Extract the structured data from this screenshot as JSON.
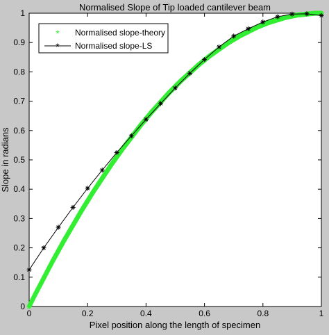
{
  "chart_data": {
    "type": "line",
    "title": "Normalised Slope of Tip loaded cantilever beam",
    "xlabel": "Pixel position along the length of specimen",
    "ylabel": "Slope in radians",
    "xlim": [
      0,
      1
    ],
    "ylim": [
      0,
      1
    ],
    "xticks": [
      0,
      0.2,
      0.4,
      0.6,
      0.8,
      1
    ],
    "xtick_labels": [
      "0",
      "0.2",
      "0.4",
      "0.6",
      "0.8",
      "1"
    ],
    "yticks": [
      0,
      0.1,
      0.2,
      0.3,
      0.4,
      0.5,
      0.6,
      0.7,
      0.8,
      0.9,
      1
    ],
    "ytick_labels": [
      "0",
      "0.1",
      "0.2",
      "0.3",
      "0.4",
      "0.5",
      "0.6",
      "0.7",
      "0.8",
      "0.9",
      "1"
    ],
    "grid": false,
    "legend_position": "top-left",
    "series": [
      {
        "name": "Normalised slope-theory",
        "style": "markers",
        "marker": "asterisk",
        "color": "#33ee33",
        "x": [
          0,
          0.02,
          0.04,
          0.06,
          0.08,
          0.1,
          0.12,
          0.14,
          0.16,
          0.18,
          0.2,
          0.22,
          0.24,
          0.26,
          0.28,
          0.3,
          0.32,
          0.34,
          0.36,
          0.38,
          0.4,
          0.42,
          0.44,
          0.46,
          0.48,
          0.5,
          0.52,
          0.54,
          0.56,
          0.58,
          0.6,
          0.62,
          0.64,
          0.66,
          0.68,
          0.7,
          0.72,
          0.74,
          0.76,
          0.78,
          0.8,
          0.82,
          0.84,
          0.86,
          0.88,
          0.9,
          0.92,
          0.94,
          0.96,
          0.98,
          1
        ],
        "y": [
          0,
          0.04,
          0.078,
          0.116,
          0.154,
          0.19,
          0.226,
          0.26,
          0.294,
          0.328,
          0.36,
          0.392,
          0.422,
          0.452,
          0.482,
          0.51,
          0.538,
          0.564,
          0.59,
          0.616,
          0.64,
          0.664,
          0.686,
          0.708,
          0.73,
          0.75,
          0.77,
          0.788,
          0.806,
          0.824,
          0.84,
          0.856,
          0.87,
          0.884,
          0.898,
          0.91,
          0.922,
          0.932,
          0.942,
          0.952,
          0.96,
          0.968,
          0.974,
          0.98,
          0.986,
          0.99,
          0.994,
          0.996,
          0.998,
          1,
          1
        ]
      },
      {
        "name": "Normalised slope-LS",
        "style": "line-markers",
        "marker": "asterisk",
        "color": "#000000",
        "x": [
          0,
          0.05,
          0.1,
          0.15,
          0.2,
          0.25,
          0.3,
          0.35,
          0.4,
          0.45,
          0.5,
          0.55,
          0.6,
          0.65,
          0.7,
          0.75,
          0.8,
          0.85,
          0.9,
          0.95,
          1
        ],
        "y": [
          0.125,
          0.2,
          0.27,
          0.338,
          0.403,
          0.465,
          0.525,
          0.582,
          0.638,
          0.692,
          0.745,
          0.795,
          0.842,
          0.885,
          0.922,
          0.947,
          0.97,
          0.988,
          0.997,
          0.998,
          0.992
        ]
      }
    ]
  }
}
